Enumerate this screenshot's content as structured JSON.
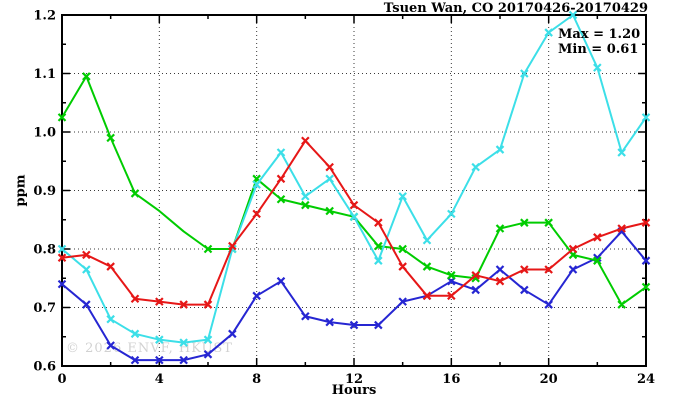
{
  "header": {
    "title": "Tsuen Wan, CO 20170426-20170429"
  },
  "axes": {
    "x_label": "Hours",
    "y_label": "ppm"
  },
  "legend": {
    "max": "Max = 1.20",
    "min": "Min = 0.61"
  },
  "watermark": "© 2026 ENVF, HKUST",
  "chart_data": {
    "type": "line",
    "title": "Tsuen Wan, CO 20170426-20170429",
    "xlabel": "Hours",
    "ylabel": "ppm",
    "xlim": [
      0,
      24
    ],
    "ylim": [
      0.6,
      1.2
    ],
    "x_tick_labels": [
      "0",
      "4",
      "8",
      "12",
      "16",
      "20",
      "24"
    ],
    "x_tick_values": [
      0,
      4,
      8,
      12,
      16,
      20,
      24
    ],
    "x_minor_step": 2,
    "y_tick_labels": [
      "0.6",
      "0.7",
      "0.8",
      "0.9",
      "1.0",
      "1.1",
      "1.2"
    ],
    "y_tick_values": [
      0.6,
      0.7,
      0.8,
      0.9,
      1.0,
      1.1,
      1.2
    ],
    "y_minor_step": 0.05,
    "grid": "dotted-at-major-ticks",
    "legend_position": "top-right",
    "annotations": {
      "max": 1.2,
      "min": 0.61
    },
    "marker": "x-cross",
    "x": [
      0,
      1,
      2,
      3,
      4,
      5,
      6,
      7,
      8,
      9,
      10,
      11,
      12,
      13,
      14,
      15,
      16,
      17,
      18,
      19,
      20,
      21,
      22,
      23,
      24
    ],
    "series": [
      {
        "name": "blue",
        "color": "#2626d2",
        "values": [
          0.74,
          0.705,
          0.635,
          0.61,
          0.61,
          0.61,
          0.62,
          0.655,
          0.72,
          0.745,
          0.685,
          0.675,
          0.67,
          0.67,
          0.71,
          0.72,
          0.745,
          0.73,
          0.765,
          0.73,
          0.705,
          0.765,
          0.785,
          0.83,
          0.78
        ],
        "marker_skip_x": []
      },
      {
        "name": "green",
        "color": "#00cc00",
        "values": [
          1.025,
          1.095,
          0.99,
          0.895,
          0.865,
          0.83,
          0.8,
          0.8,
          0.92,
          0.885,
          0.875,
          0.865,
          0.855,
          0.805,
          0.8,
          0.77,
          0.755,
          0.75,
          0.835,
          0.845,
          0.845,
          0.79,
          0.78,
          0.705,
          0.735
        ],
        "marker_skip_x": [
          4,
          5
        ]
      },
      {
        "name": "cyan",
        "color": "#3cdfe8",
        "values": [
          0.8,
          0.765,
          0.68,
          0.655,
          0.645,
          0.64,
          0.645,
          0.8,
          0.91,
          0.965,
          0.89,
          0.92,
          0.855,
          0.78,
          0.89,
          0.815,
          0.86,
          0.94,
          0.97,
          1.1,
          1.17,
          1.2,
          1.11,
          0.965,
          1.025
        ],
        "marker_skip_x": []
      },
      {
        "name": "red",
        "color": "#e61717",
        "values": [
          0.785,
          0.79,
          0.77,
          0.715,
          0.71,
          0.705,
          0.705,
          0.805,
          0.86,
          0.92,
          0.985,
          0.94,
          0.875,
          0.845,
          0.77,
          0.72,
          0.72,
          0.755,
          0.745,
          0.765,
          0.765,
          0.8,
          0.82,
          0.835,
          0.845
        ],
        "marker_skip_x": []
      }
    ]
  }
}
